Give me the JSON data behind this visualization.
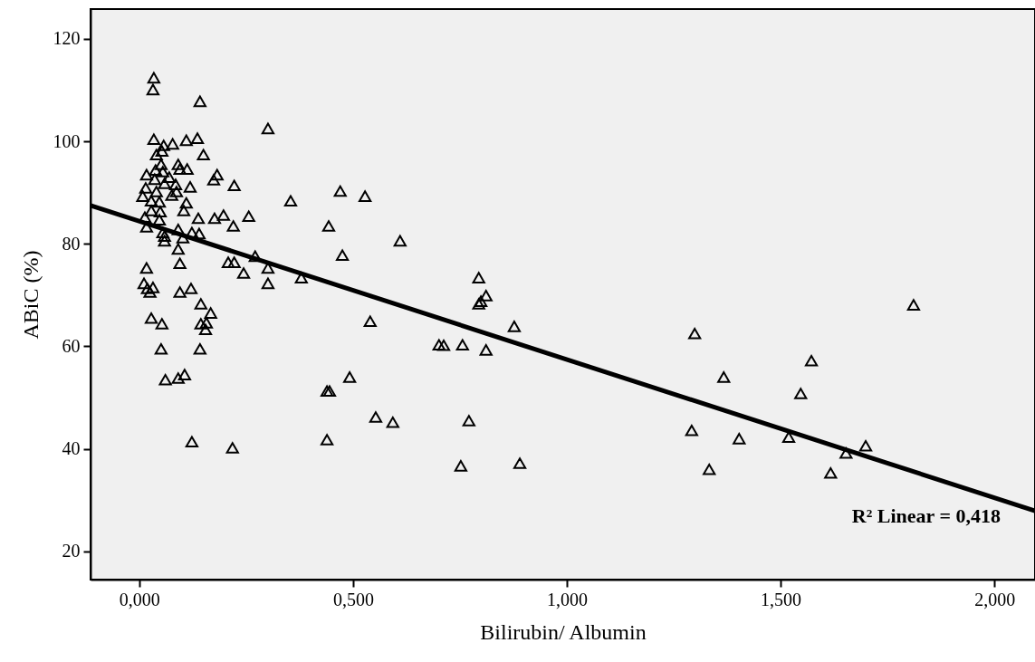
{
  "chart_data": {
    "type": "scatter",
    "xlabel": "Bilirubin/ Albumin",
    "ylabel": "ABiC (%)",
    "xlim": [
      -0.114,
      2.095
    ],
    "ylim": [
      14.5,
      125.8
    ],
    "xticks": [
      {
        "value": 0,
        "label": "0,000"
      },
      {
        "value": 0.5,
        "label": "0,500"
      },
      {
        "value": 1,
        "label": "1,000"
      },
      {
        "value": 1.5,
        "label": "1,500"
      },
      {
        "value": 2,
        "label": "2,000"
      }
    ],
    "yticks": [
      20,
      40,
      60,
      80,
      100,
      120
    ],
    "grid": false,
    "annotations": [
      "R² Linear = 0,418"
    ],
    "series": [
      {
        "marker": "triangle",
        "color": "#000000",
        "x": [
          0.034,
          0.032,
          0.142,
          0.301,
          0.034,
          0.057,
          0.078,
          0.11,
          0.136,
          0.053,
          0.04,
          0.15,
          0.091,
          0.051,
          0.017,
          0.038,
          0.055,
          0.095,
          0.112,
          0.182,
          0.174,
          0.222,
          0.07,
          0.036,
          0.059,
          0.085,
          0.119,
          0.015,
          0.04,
          0.087,
          0.008,
          0.076,
          0.028,
          0.047,
          0.11,
          0.104,
          0.028,
          0.049,
          0.013,
          0.138,
          0.176,
          0.197,
          0.256,
          0.22,
          0.017,
          0.047,
          0.091,
          0.055,
          0.059,
          0.123,
          0.14,
          0.102,
          0.059,
          0.091,
          0.271,
          0.017,
          0.095,
          0.208,
          0.222,
          0.244,
          0.301,
          0.301,
          0.011,
          0.032,
          0.025,
          0.019,
          0.095,
          0.121,
          0.144,
          0.167,
          0.144,
          0.157,
          0.155,
          0.028,
          0.053,
          0.051,
          0.142,
          0.061,
          0.091,
          0.106,
          0.123,
          0.218,
          0.47,
          0.528,
          0.354,
          0.443,
          0.61,
          0.475,
          0.379,
          0.54,
          0.492,
          0.439,
          0.445,
          0.553,
          0.593,
          0.439,
          0.794,
          0.811,
          0.799,
          0.794,
          0.877,
          0.701,
          0.712,
          0.756,
          0.811,
          0.771,
          0.752,
          0.89,
          1.811,
          1.299,
          1.572,
          1.367,
          1.547,
          1.292,
          1.403,
          1.519,
          1.653,
          1.699,
          1.333,
          1.617
        ],
        "values": [
          112.4,
          110.1,
          107.8,
          102.5,
          100.4,
          99.2,
          99.5,
          100.2,
          100.6,
          98.1,
          97.4,
          97.4,
          95.5,
          95.5,
          93.5,
          94.4,
          94.1,
          94.6,
          94.6,
          93.5,
          92.5,
          91.4,
          93.0,
          92.6,
          91.8,
          91.6,
          91.1,
          90.9,
          90.2,
          90.2,
          89.3,
          89.5,
          88.4,
          88.2,
          88.0,
          86.5,
          86.5,
          86.3,
          85.2,
          85.0,
          85.0,
          85.6,
          85.4,
          83.5,
          83.3,
          84.7,
          82.8,
          82.2,
          81.5,
          82.2,
          82.0,
          81.2,
          80.6,
          79.0,
          77.6,
          75.3,
          76.2,
          76.4,
          76.4,
          74.3,
          75.3,
          72.3,
          72.3,
          71.5,
          70.6,
          71.3,
          70.6,
          71.3,
          68.3,
          66.5,
          64.4,
          64.6,
          63.3,
          65.5,
          64.4,
          59.5,
          59.5,
          53.5,
          53.8,
          54.5,
          41.4,
          40.2,
          90.3,
          89.3,
          88.4,
          83.5,
          80.6,
          77.8,
          73.4,
          64.9,
          54.0,
          51.3,
          51.3,
          46.2,
          45.2,
          41.8,
          73.4,
          69.9,
          68.8,
          68.3,
          63.9,
          60.3,
          60.2,
          60.3,
          59.3,
          45.5,
          36.7,
          37.2,
          68.1,
          62.5,
          57.2,
          54.0,
          50.8,
          43.6,
          42.0,
          42.3,
          39.2,
          40.6,
          36.0,
          35.3
        ]
      },
      {
        "type": "line",
        "color": "#000000",
        "x": [
          -0.114,
          2.095
        ],
        "values": [
          87.5,
          27.9
        ]
      }
    ]
  }
}
